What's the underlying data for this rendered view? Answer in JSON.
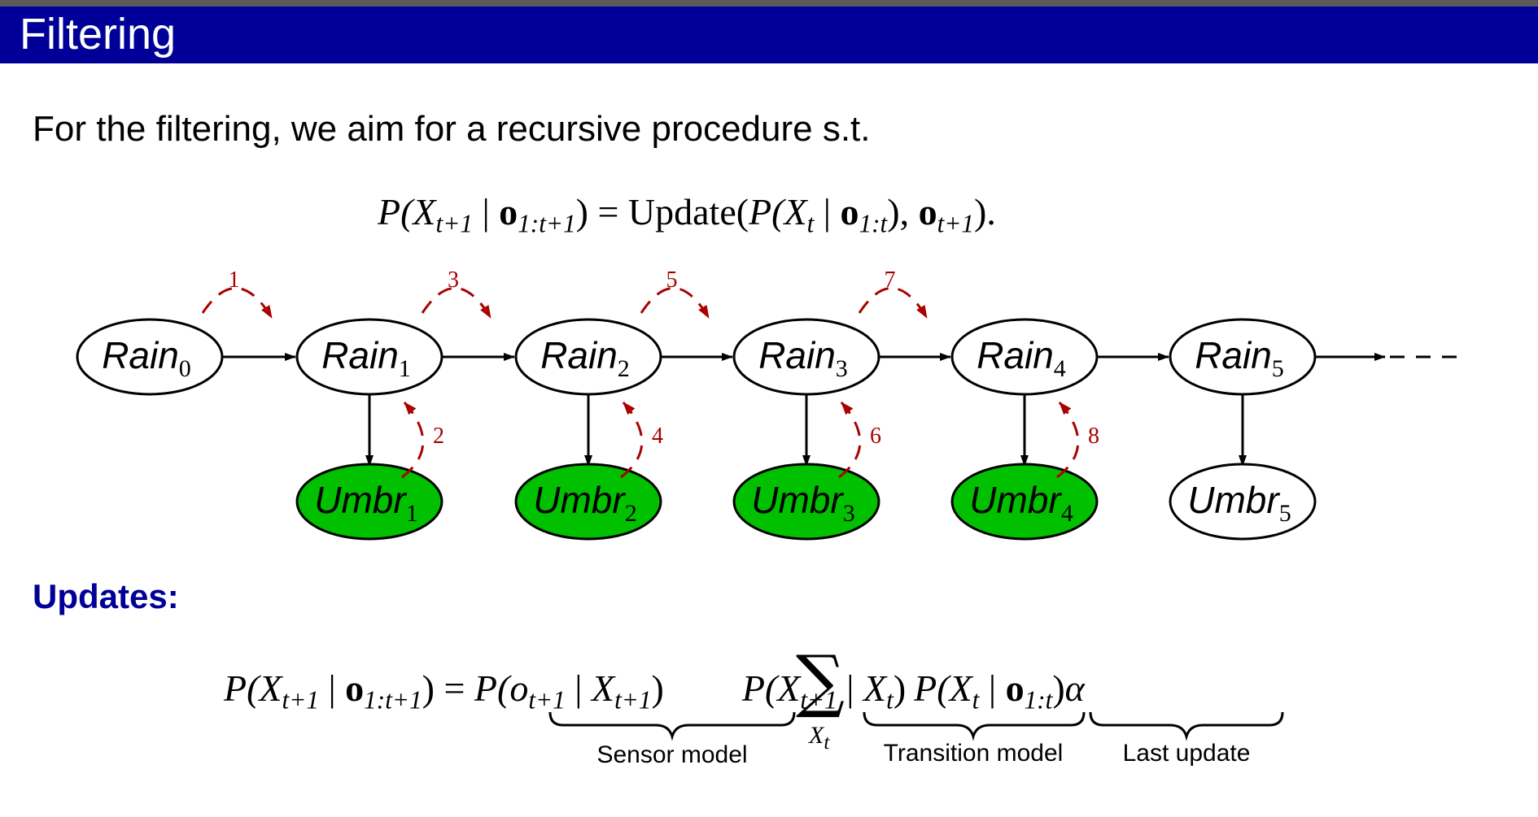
{
  "slide": {
    "title": "Filtering",
    "intro": "For the filtering, we aim for a recursive procedure s.t.",
    "updates_heading": "Updates:"
  },
  "equation1": {
    "lhs_P": "P(",
    "lhs_X": "X",
    "lhs_X_sub": "t+1",
    "lhs_bar": " | ",
    "lhs_o": "o",
    "lhs_o_sub": "1:t+1",
    "lhs_close": ")",
    "eq": " = ",
    "update": "Update(",
    "P2": "P(",
    "X2": "X",
    "X2_sub": "t",
    "bar2": " | ",
    "o2": "o",
    "o2_sub": "1:t",
    "close2": "), ",
    "o3": "o",
    "o3_sub": "t+1",
    "tail": ")."
  },
  "diagram": {
    "rain_nodes": [
      {
        "label": "Rain",
        "sub": "0"
      },
      {
        "label": "Rain",
        "sub": "1"
      },
      {
        "label": "Rain",
        "sub": "2"
      },
      {
        "label": "Rain",
        "sub": "3"
      },
      {
        "label": "Rain",
        "sub": "4"
      },
      {
        "label": "Rain",
        "sub": "5"
      }
    ],
    "umbr_nodes": [
      {
        "label": "Umbr",
        "sub": "1",
        "observed": true
      },
      {
        "label": "Umbr",
        "sub": "2",
        "observed": true
      },
      {
        "label": "Umbr",
        "sub": "3",
        "observed": true
      },
      {
        "label": "Umbr",
        "sub": "4",
        "observed": true
      },
      {
        "label": "Umbr",
        "sub": "5",
        "observed": false
      }
    ],
    "step_labels": [
      "1",
      "2",
      "3",
      "4",
      "5",
      "6",
      "7",
      "8"
    ],
    "colors": {
      "observed_fill": "#00c000",
      "step_arrow": "#aa0000",
      "edge": "#000000"
    }
  },
  "equation2": {
    "lhs_P": "P(",
    "lhs_X": "X",
    "lhs_X_sub": "t+1",
    "lhs_bar": " | ",
    "lhs_o": "o",
    "lhs_o_sub": "1:t+1",
    "lhs_close": ")",
    "eq": " = ",
    "sensor": {
      "P": "P(",
      "o": "o",
      "o_sub": "t+1",
      "bar": " | ",
      "X": "X",
      "X_sub": "t+1",
      "close": ")"
    },
    "sum_glyph": "∑",
    "sum_sub": "X",
    "sum_sub_t": "t",
    "transition": {
      "P": "P(",
      "X": "X",
      "X_sub": "t+1",
      "bar": " | ",
      "X2": "X",
      "X2_sub": "t",
      "close": ")"
    },
    "last": {
      "P": "P(",
      "X": "X",
      "X_sub": "t",
      "bar": " | ",
      "o": "o",
      "o_sub": "1:t",
      "close": ")"
    },
    "alpha": "α",
    "brace_labels": {
      "sensor": "Sensor model",
      "transition": "Transition model",
      "last": "Last update"
    }
  }
}
